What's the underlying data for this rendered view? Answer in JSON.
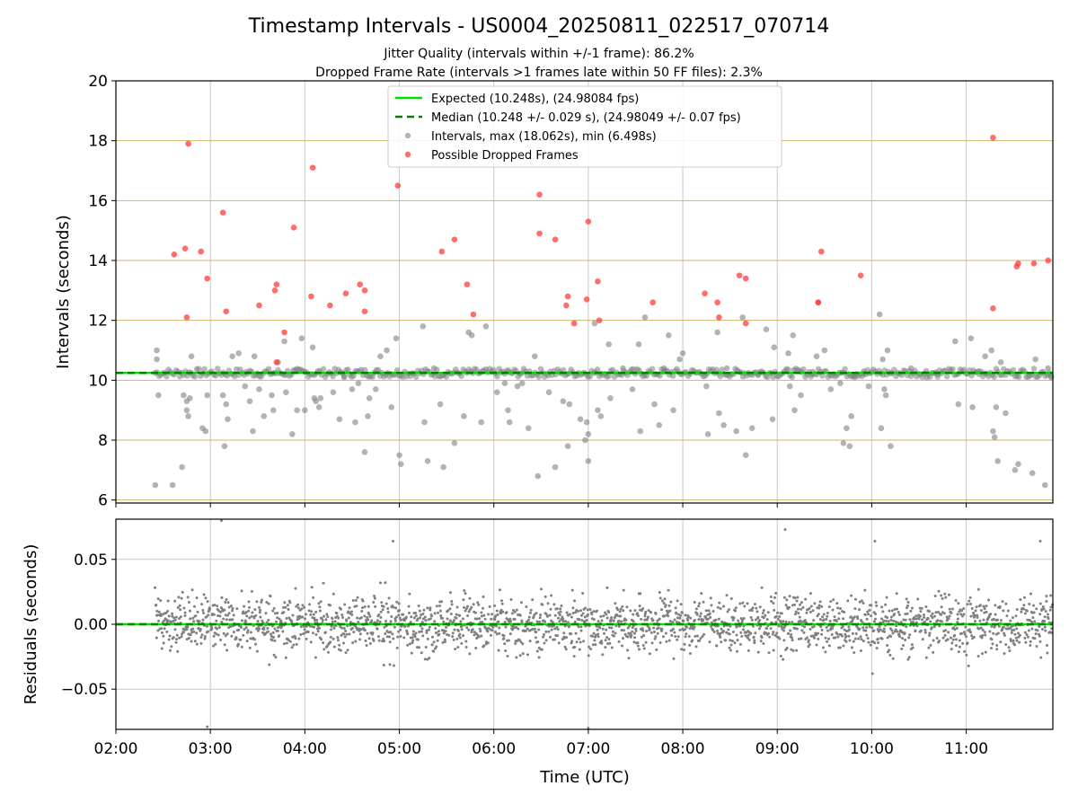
{
  "title": "Timestamp Intervals - US0004_20250811_022517_070714",
  "subtitle_lines": [
    "Jitter Quality (intervals within +/-1 frame): 86.2%",
    "Dropped Frame Rate (intervals >1 frames late within 50 FF files): 2.3%"
  ],
  "colors": {
    "expected": "#00e000",
    "median": "#008000",
    "intervals": "#808080",
    "dropped": "#ff3b3b",
    "frame_gridline": "#d2b46a",
    "time_gridline": "#c8c8c8"
  },
  "chart_data": [
    {
      "type": "scatter",
      "panel": "intervals",
      "xlabel": "",
      "ylabel": "Intervals (seconds)",
      "x_domain": [
        "02:00",
        "11:55"
      ],
      "ylim": [
        5.9,
        20
      ],
      "y_ticks": [
        6,
        8,
        10,
        12,
        14,
        16,
        18,
        20
      ],
      "x_ticks": [
        "02:00",
        "03:00",
        "04:00",
        "05:00",
        "06:00",
        "07:00",
        "08:00",
        "09:00",
        "10:00",
        "11:00"
      ],
      "frame_gridlines_y": [
        6,
        8,
        10,
        12,
        14,
        16,
        18
      ],
      "grid": "vertical at hours",
      "legend_position": "upper center",
      "series": [
        {
          "name": "Expected (10.248s), (24.98084 fps)",
          "kind": "hline",
          "value": 10.248
        },
        {
          "name": "Median (10.248 +/- 0.029 s), (24.98049 +/- 0.07 fps)",
          "kind": "dashed-hline",
          "value": 10.248
        },
        {
          "name": "Intervals, max (18.062s), min (6.498s)",
          "kind": "points",
          "points": [
            [
              "02:25",
              6.5
            ],
            [
              "02:26",
              11.0
            ],
            [
              "02:26",
              10.7
            ],
            [
              "02:27",
              9.5
            ],
            [
              "02:36",
              6.5
            ],
            [
              "02:42",
              7.1
            ],
            [
              "02:43",
              9.5
            ],
            [
              "02:45",
              9.3
            ],
            [
              "02:45",
              9.0
            ],
            [
              "02:46",
              8.8
            ],
            [
              "02:47",
              9.4
            ],
            [
              "02:48",
              10.8
            ],
            [
              "02:55",
              8.4
            ],
            [
              "02:57",
              8.3
            ],
            [
              "02:58",
              9.5
            ],
            [
              "03:08",
              9.5
            ],
            [
              "03:09",
              7.8
            ],
            [
              "03:10",
              9.2
            ],
            [
              "03:11",
              8.7
            ],
            [
              "03:14",
              10.8
            ],
            [
              "03:18",
              10.9
            ],
            [
              "03:22",
              9.8
            ],
            [
              "03:25",
              9.3
            ],
            [
              "03:27",
              8.3
            ],
            [
              "03:28",
              10.8
            ],
            [
              "03:31",
              9.7
            ],
            [
              "03:34",
              8.8
            ],
            [
              "03:39",
              9.5
            ],
            [
              "03:40",
              9.0
            ],
            [
              "03:43",
              10.6
            ],
            [
              "03:47",
              11.3
            ],
            [
              "03:48",
              9.6
            ],
            [
              "03:52",
              8.2
            ],
            [
              "03:55",
              9.0
            ],
            [
              "03:58",
              11.4
            ],
            [
              "04:00",
              9.0
            ],
            [
              "04:05",
              11.1
            ],
            [
              "04:06",
              9.4
            ],
            [
              "04:07",
              9.3
            ],
            [
              "04:09",
              9.1
            ],
            [
              "04:10",
              9.4
            ],
            [
              "04:18",
              9.6
            ],
            [
              "04:22",
              8.7
            ],
            [
              "04:25",
              10.1
            ],
            [
              "04:30",
              9.7
            ],
            [
              "04:32",
              8.6
            ],
            [
              "04:34",
              9.9
            ],
            [
              "04:38",
              7.6
            ],
            [
              "04:40",
              8.8
            ],
            [
              "04:41",
              9.4
            ],
            [
              "04:45",
              9.7
            ],
            [
              "04:48",
              10.8
            ],
            [
              "04:52",
              11.0
            ],
            [
              "04:55",
              9.1
            ],
            [
              "04:58",
              11.4
            ],
            [
              "05:00",
              7.5
            ],
            [
              "05:01",
              7.2
            ],
            [
              "05:15",
              11.8
            ],
            [
              "05:16",
              8.6
            ],
            [
              "05:18",
              7.3
            ],
            [
              "05:22",
              10.4
            ],
            [
              "05:26",
              9.2
            ],
            [
              "05:28",
              7.1
            ],
            [
              "05:35",
              7.9
            ],
            [
              "05:41",
              8.8
            ],
            [
              "05:44",
              11.6
            ],
            [
              "05:46",
              11.5
            ],
            [
              "05:52",
              8.6
            ],
            [
              "05:55",
              11.8
            ],
            [
              "06:02",
              9.6
            ],
            [
              "06:07",
              9.9
            ],
            [
              "06:09",
              9.0
            ],
            [
              "06:10",
              8.6
            ],
            [
              "06:15",
              9.8
            ],
            [
              "06:18",
              9.9
            ],
            [
              "06:22",
              8.4
            ],
            [
              "06:26",
              10.8
            ],
            [
              "06:28",
              6.8
            ],
            [
              "06:35",
              9.6
            ],
            [
              "06:39",
              7.1
            ],
            [
              "06:44",
              9.3
            ],
            [
              "06:47",
              7.8
            ],
            [
              "06:48",
              9.2
            ],
            [
              "06:55",
              8.7
            ],
            [
              "06:58",
              8.0
            ],
            [
              "06:59",
              8.6
            ],
            [
              "07:00",
              8.2
            ],
            [
              "07:00",
              7.3
            ],
            [
              "07:04",
              11.9
            ],
            [
              "07:06",
              9.0
            ],
            [
              "07:08",
              8.8
            ],
            [
              "07:13",
              11.2
            ],
            [
              "07:14",
              9.4
            ],
            [
              "07:22",
              10.4
            ],
            [
              "07:28",
              9.7
            ],
            [
              "07:32",
              11.2
            ],
            [
              "07:33",
              8.3
            ],
            [
              "07:36",
              12.1
            ],
            [
              "07:42",
              9.2
            ],
            [
              "07:45",
              8.5
            ],
            [
              "07:48",
              10.4
            ],
            [
              "07:51",
              11.5
            ],
            [
              "07:54",
              9.0
            ],
            [
              "07:58",
              10.7
            ],
            [
              "08:00",
              10.9
            ],
            [
              "08:15",
              9.8
            ],
            [
              "08:16",
              8.2
            ],
            [
              "08:22",
              11.6
            ],
            [
              "08:23",
              8.9
            ],
            [
              "08:26",
              8.5
            ],
            [
              "08:28",
              10.4
            ],
            [
              "08:34",
              8.3
            ],
            [
              "08:38",
              12.1
            ],
            [
              "08:40",
              7.5
            ],
            [
              "08:44",
              8.4
            ],
            [
              "08:48",
              10.2
            ],
            [
              "08:53",
              11.7
            ],
            [
              "08:57",
              8.7
            ],
            [
              "08:58",
              11.1
            ],
            [
              "09:07",
              10.9
            ],
            [
              "09:08",
              9.8
            ],
            [
              "09:10",
              11.5
            ],
            [
              "09:11",
              9.0
            ],
            [
              "09:15",
              9.5
            ],
            [
              "09:22",
              10.2
            ],
            [
              "09:25",
              10.8
            ],
            [
              "09:30",
              11.0
            ],
            [
              "09:34",
              9.7
            ],
            [
              "09:40",
              9.9
            ],
            [
              "09:42",
              7.9
            ],
            [
              "09:44",
              8.4
            ],
            [
              "09:46",
              7.8
            ],
            [
              "09:47",
              8.8
            ],
            [
              "09:49",
              10.1
            ],
            [
              "09:55",
              10.3
            ],
            [
              "09:58",
              9.8
            ],
            [
              "10:05",
              12.2
            ],
            [
              "10:06",
              8.4
            ],
            [
              "10:07",
              10.7
            ],
            [
              "10:08",
              9.7
            ],
            [
              "10:09",
              9.5
            ],
            [
              "10:10",
              11.0
            ],
            [
              "10:12",
              7.8
            ],
            [
              "10:25",
              10.4
            ],
            [
              "10:35",
              10.1
            ],
            [
              "10:42",
              10.2
            ],
            [
              "10:53",
              11.3
            ],
            [
              "10:55",
              9.2
            ],
            [
              "11:03",
              11.4
            ],
            [
              "11:04",
              9.1
            ],
            [
              "11:08",
              10.3
            ],
            [
              "11:12",
              10.8
            ],
            [
              "11:16",
              11.0
            ],
            [
              "11:17",
              8.3
            ],
            [
              "11:18",
              8.1
            ],
            [
              "11:19",
              9.1
            ],
            [
              "11:20",
              7.3
            ],
            [
              "11:22",
              10.6
            ],
            [
              "11:25",
              8.9
            ],
            [
              "11:31",
              7.0
            ],
            [
              "11:33",
              7.2
            ],
            [
              "11:42",
              6.9
            ],
            [
              "11:44",
              10.7
            ],
            [
              "11:50",
              6.5
            ],
            [
              "11:52",
              10.4
            ],
            [
              "11:54",
              10.1
            ]
          ]
        },
        {
          "name": "Possible Dropped Frames",
          "kind": "points",
          "points": [
            [
              "02:37",
              14.2
            ],
            [
              "02:44",
              14.4
            ],
            [
              "02:45",
              12.1
            ],
            [
              "02:46",
              17.9
            ],
            [
              "02:54",
              14.3
            ],
            [
              "02:58",
              13.4
            ],
            [
              "03:08",
              15.6
            ],
            [
              "03:10",
              12.3
            ],
            [
              "03:31",
              12.5
            ],
            [
              "03:41",
              13.0
            ],
            [
              "03:42",
              13.2
            ],
            [
              "03:42",
              10.6
            ],
            [
              "03:47",
              11.6
            ],
            [
              "03:53",
              15.1
            ],
            [
              "04:04",
              12.8
            ],
            [
              "04:05",
              17.1
            ],
            [
              "04:16",
              12.5
            ],
            [
              "04:26",
              12.9
            ],
            [
              "04:35",
              13.2
            ],
            [
              "04:38",
              12.3
            ],
            [
              "04:38",
              13.0
            ],
            [
              "04:59",
              16.5
            ],
            [
              "05:27",
              14.3
            ],
            [
              "05:35",
              14.7
            ],
            [
              "05:43",
              13.2
            ],
            [
              "05:47",
              12.2
            ],
            [
              "06:29",
              14.9
            ],
            [
              "06:29",
              16.2
            ],
            [
              "06:39",
              14.7
            ],
            [
              "06:46",
              12.5
            ],
            [
              "06:47",
              12.8
            ],
            [
              "06:51",
              11.9
            ],
            [
              "06:59",
              12.7
            ],
            [
              "07:00",
              15.3
            ],
            [
              "07:06",
              13.3
            ],
            [
              "07:07",
              12.0
            ],
            [
              "07:41",
              12.6
            ],
            [
              "08:14",
              12.9
            ],
            [
              "08:22",
              12.6
            ],
            [
              "08:23",
              12.1
            ],
            [
              "08:36",
              13.5
            ],
            [
              "08:40",
              11.9
            ],
            [
              "08:40",
              13.4
            ],
            [
              "09:26",
              12.6
            ],
            [
              "09:26",
              12.6
            ],
            [
              "09:28",
              14.3
            ],
            [
              "09:53",
              13.5
            ],
            [
              "11:17",
              12.4
            ],
            [
              "11:17",
              18.1
            ],
            [
              "11:32",
              13.8
            ],
            [
              "11:33",
              13.9
            ],
            [
              "11:43",
              13.9
            ],
            [
              "11:52",
              14.0
            ]
          ]
        }
      ]
    },
    {
      "type": "scatter",
      "panel": "residuals",
      "xlabel": "Time (UTC)",
      "ylabel": "Residuals (seconds)",
      "x_domain": [
        "02:00",
        "11:55"
      ],
      "ylim": [
        -0.081,
        0.081
      ],
      "y_ticks": [
        -0.05,
        0.0,
        0.05
      ],
      "y_tick_labels": [
        "−0.05",
        "0.00",
        "0.05"
      ],
      "x_ticks": [
        "02:00",
        "03:00",
        "04:00",
        "05:00",
        "06:00",
        "07:00",
        "08:00",
        "09:00",
        "10:00",
        "11:00"
      ],
      "grid": "both",
      "series": [
        {
          "name": "",
          "kind": "dashed-hline",
          "value": 0.0
        },
        {
          "name": "",
          "kind": "hline",
          "value": 0.0
        },
        {
          "name": "",
          "kind": "points",
          "x_range": [
            "02:25",
            "11:55"
          ],
          "approx_count": 2300,
          "std": 0.02,
          "notable_points": [
            [
              "03:07",
              0.08
            ],
            [
              "02:58",
              -0.079
            ],
            [
              "07:00",
              -0.08
            ],
            [
              "04:56",
              0.064
            ],
            [
              "09:05",
              0.073
            ],
            [
              "10:02",
              0.064
            ],
            [
              "11:47",
              0.064
            ]
          ]
        }
      ]
    }
  ]
}
